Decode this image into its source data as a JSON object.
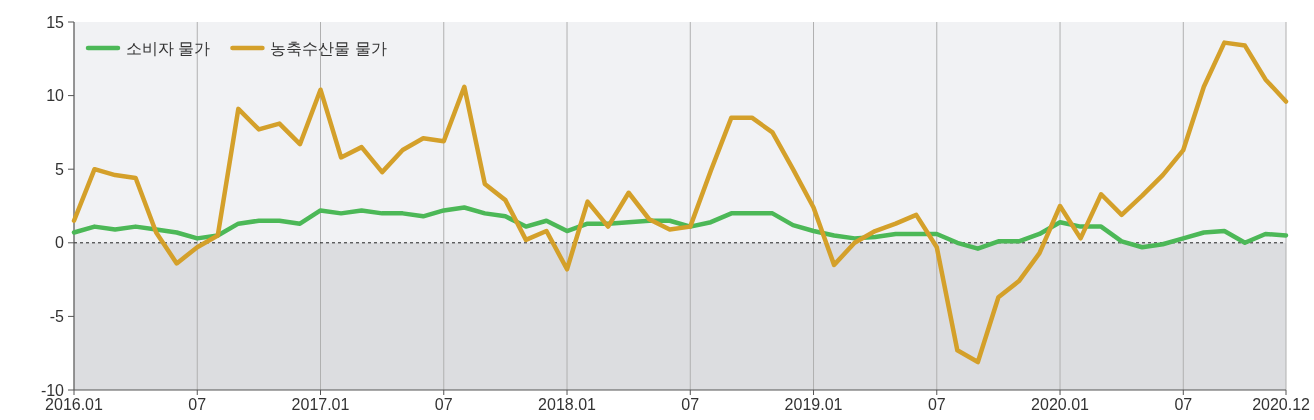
{
  "chart_data": {
    "type": "line",
    "x": [
      "2016-01",
      "2016-02",
      "2016-03",
      "2016-04",
      "2016-05",
      "2016-06",
      "2016-07",
      "2016-08",
      "2016-09",
      "2016-10",
      "2016-11",
      "2016-12",
      "2017-01",
      "2017-02",
      "2017-03",
      "2017-04",
      "2017-05",
      "2017-06",
      "2017-07",
      "2017-08",
      "2017-09",
      "2017-10",
      "2017-11",
      "2017-12",
      "2018-01",
      "2018-02",
      "2018-03",
      "2018-04",
      "2018-05",
      "2018-06",
      "2018-07",
      "2018-08",
      "2018-09",
      "2018-10",
      "2018-11",
      "2018-12",
      "2019-01",
      "2019-02",
      "2019-03",
      "2019-04",
      "2019-05",
      "2019-06",
      "2019-07",
      "2019-08",
      "2019-09",
      "2019-10",
      "2019-11",
      "2019-12",
      "2020-01",
      "2020-02",
      "2020-03",
      "2020-04",
      "2020-05",
      "2020-06",
      "2020-07",
      "2020-08",
      "2020-09",
      "2020-10",
      "2020-11",
      "2020-12"
    ],
    "series": [
      {
        "name": "소비자 물가",
        "color": "#4cb857",
        "values": [
          0.7,
          1.1,
          0.9,
          1.1,
          0.9,
          0.7,
          0.3,
          0.5,
          1.3,
          1.5,
          1.5,
          1.3,
          2.2,
          2.0,
          2.2,
          2.0,
          2.0,
          1.8,
          2.2,
          2.4,
          2.0,
          1.8,
          1.1,
          1.5,
          0.8,
          1.3,
          1.3,
          1.4,
          1.5,
          1.5,
          1.1,
          1.4,
          2.0,
          2.0,
          2.0,
          1.2,
          0.8,
          0.5,
          0.3,
          0.4,
          0.6,
          0.6,
          0.6,
          0.0,
          -0.4,
          0.1,
          0.1,
          0.6,
          1.4,
          1.1,
          1.1,
          0.1,
          -0.3,
          -0.1,
          0.3,
          0.7,
          0.8,
          0.0,
          0.6,
          0.5
        ]
      },
      {
        "name": "농축수산물 물가",
        "color": "#d4a02a",
        "values": [
          1.5,
          5.0,
          4.6,
          4.4,
          0.7,
          -1.4,
          -0.3,
          0.5,
          9.1,
          7.7,
          8.1,
          6.7,
          10.4,
          5.8,
          6.5,
          4.8,
          6.3,
          7.1,
          6.9,
          10.6,
          4.0,
          2.9,
          0.2,
          0.8,
          -1.8,
          2.8,
          1.1,
          3.4,
          1.6,
          0.9,
          1.1,
          4.9,
          8.5,
          8.5,
          7.5,
          5.0,
          2.4,
          -1.5,
          0.0,
          0.8,
          1.3,
          1.9,
          -0.3,
          -7.3,
          -8.1,
          -3.7,
          -2.6,
          -0.7,
          2.5,
          0.3,
          3.3,
          1.9,
          3.2,
          4.6,
          6.3,
          10.6,
          13.6,
          13.4,
          11.1,
          9.6
        ]
      }
    ],
    "xlim": [
      "2016-01",
      "2020-12"
    ],
    "xticks": [
      {
        "value": "2016-01",
        "label": "2016.01"
      },
      {
        "value": "2016-07",
        "label": "07"
      },
      {
        "value": "2017-01",
        "label": "2017.01"
      },
      {
        "value": "2017-07",
        "label": "07"
      },
      {
        "value": "2018-01",
        "label": "2018.01"
      },
      {
        "value": "2018-07",
        "label": "07"
      },
      {
        "value": "2019-01",
        "label": "2019.01"
      },
      {
        "value": "2019-07",
        "label": "07"
      },
      {
        "value": "2020-01",
        "label": "2020.01"
      },
      {
        "value": "2020-07",
        "label": "07"
      },
      {
        "value": "2020-12",
        "label": "2020.12"
      }
    ],
    "ylim": [
      -10,
      15
    ],
    "yticks": [
      -10,
      -5,
      0,
      5,
      10,
      15
    ],
    "bands": [
      {
        "axis": "y",
        "from": -10,
        "to": 0,
        "color": "#dcdde0"
      }
    ],
    "ref_lines": [
      {
        "axis": "y",
        "value": 0,
        "line_style": "dashed",
        "color": "#222222"
      }
    ],
    "grid": "x",
    "legend": "top left",
    "marker": "none",
    "line_style": "solid"
  }
}
